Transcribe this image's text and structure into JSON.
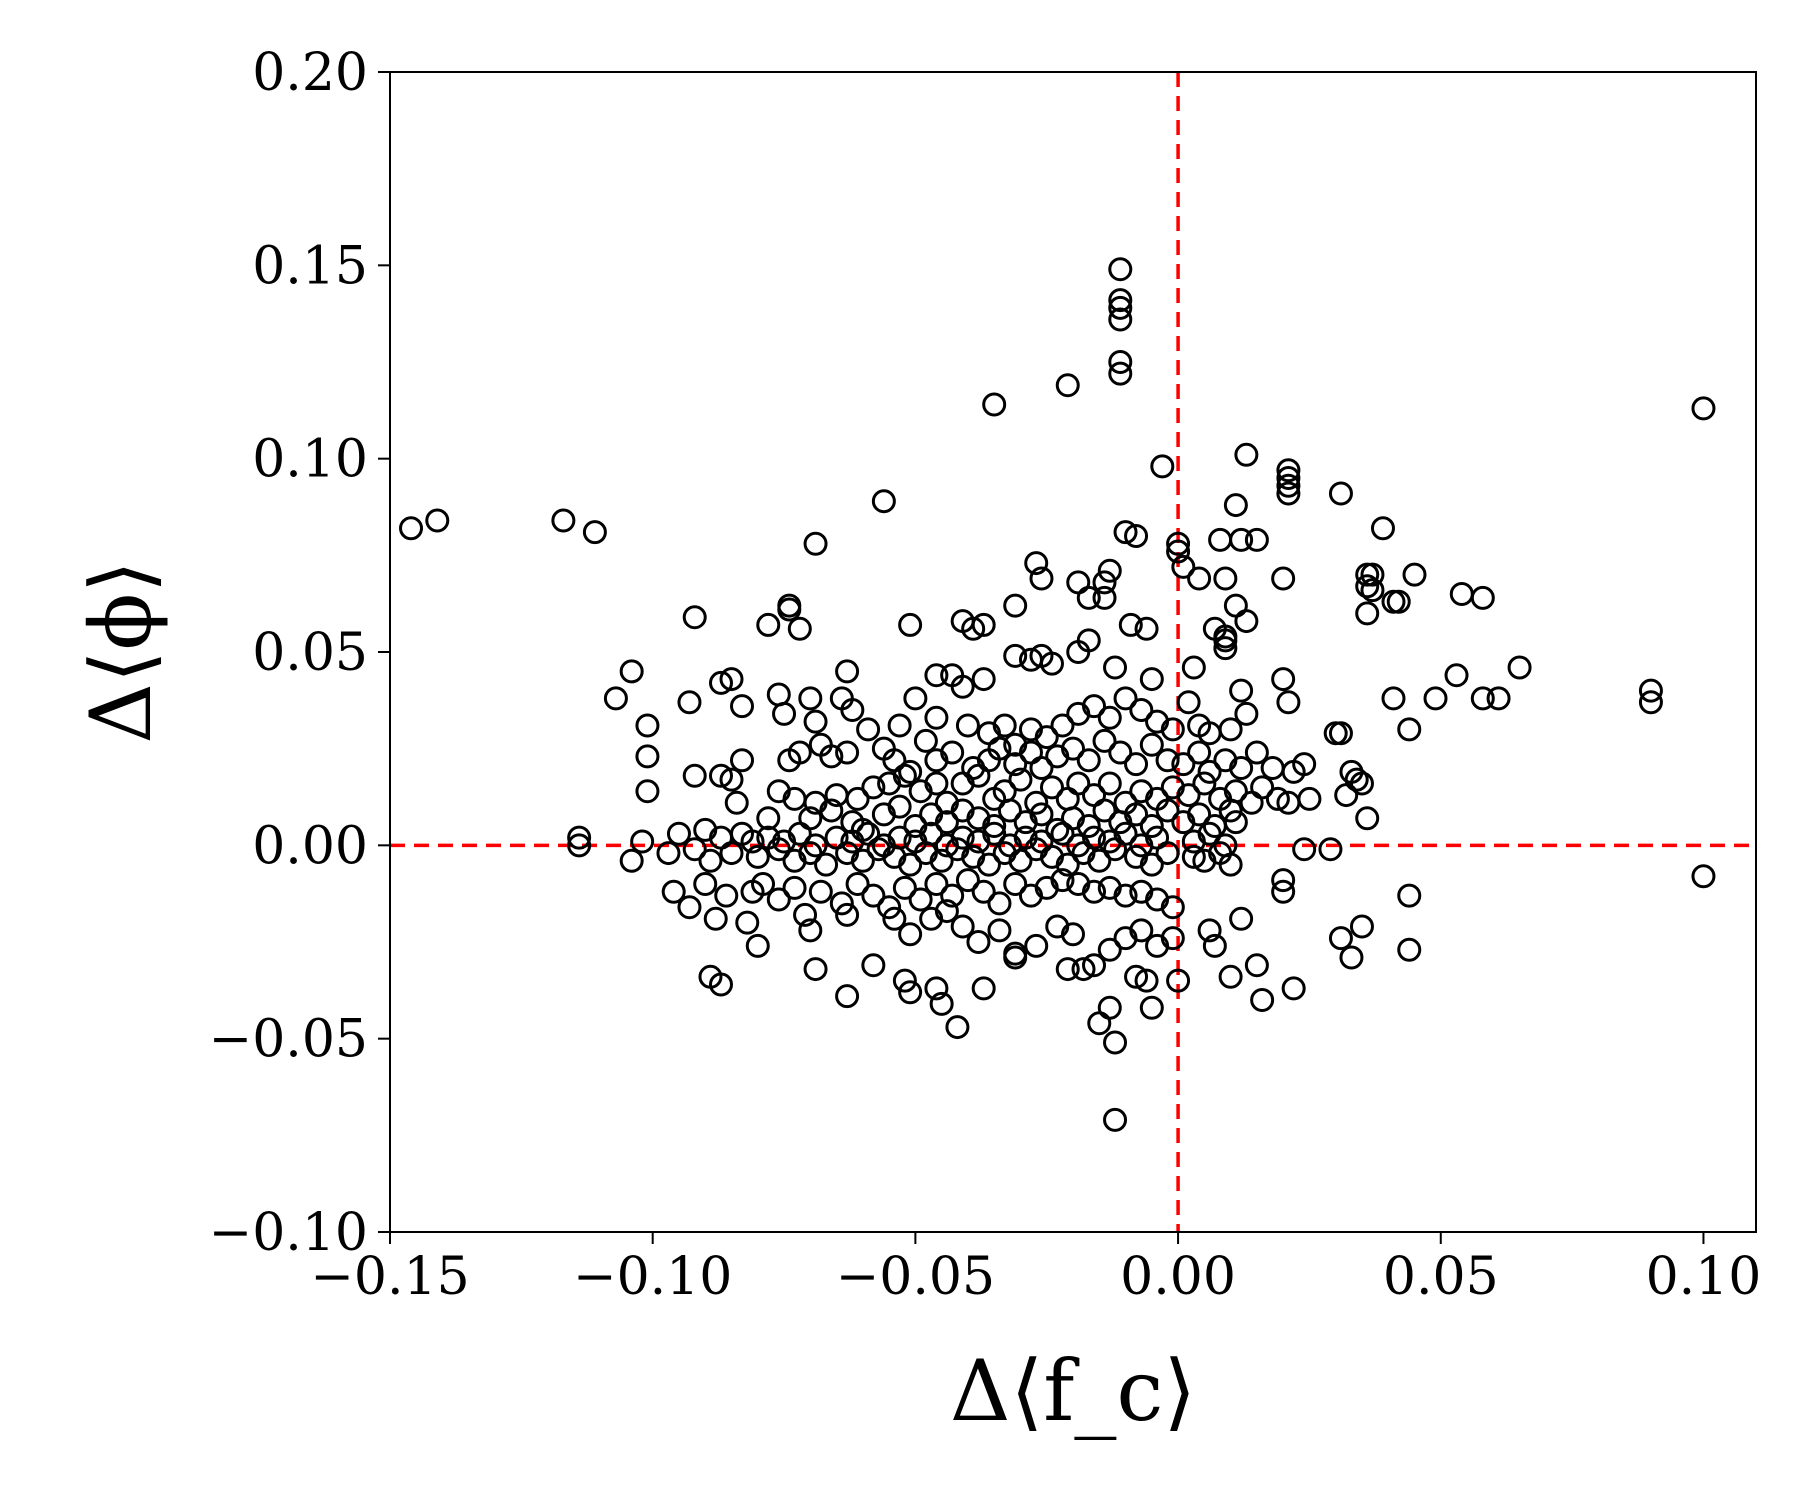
{
  "chart_data": {
    "type": "scatter",
    "xlabel": "Δ⟨f_c⟩",
    "ylabel": "Δ⟨ϕ⟩",
    "xlim": [
      -0.15,
      0.11
    ],
    "ylim": [
      -0.1,
      0.2
    ],
    "x_ticks": [
      -0.15,
      -0.1,
      -0.05,
      0.0,
      0.05,
      0.1
    ],
    "x_tick_labels": [
      "−0.15",
      "−0.10",
      "−0.05",
      "0.00",
      "0.05",
      "0.10"
    ],
    "y_ticks": [
      -0.1,
      -0.05,
      0.0,
      0.05,
      0.1,
      0.15,
      0.2
    ],
    "y_tick_labels": [
      "−0.10",
      "−0.05",
      "0.00",
      "0.05",
      "0.10",
      "0.15",
      "0.20"
    ],
    "reference_lines": {
      "x": 0.0,
      "y": 0.0,
      "color": "#ff0000",
      "style": "dashed"
    },
    "marker": {
      "shape": "open-circle",
      "color": "#000000"
    },
    "grid": false,
    "points": [
      [
        -0.146,
        0.082
      ],
      [
        -0.141,
        0.084
      ],
      [
        -0.117,
        0.084
      ],
      [
        -0.111,
        0.081
      ],
      [
        -0.069,
        0.078
      ],
      [
        -0.056,
        0.089
      ],
      [
        -0.035,
        0.114
      ],
      [
        -0.021,
        0.119
      ],
      [
        -0.011,
        0.149
      ],
      [
        -0.011,
        0.141
      ],
      [
        -0.011,
        0.139
      ],
      [
        -0.011,
        0.136
      ],
      [
        -0.011,
        0.125
      ],
      [
        -0.011,
        0.122
      ],
      [
        0.1,
        0.113
      ],
      [
        0.1,
        -0.008
      ],
      [
        -0.012,
        -0.071
      ],
      [
        -0.003,
        0.098
      ],
      [
        0.013,
        0.101
      ],
      [
        0.021,
        0.097
      ],
      [
        0.021,
        0.095
      ],
      [
        0.021,
        0.093
      ],
      [
        0.021,
        0.091
      ],
      [
        0.031,
        0.091
      ],
      [
        0.011,
        0.088
      ],
      [
        -0.01,
        0.081
      ],
      [
        -0.008,
        0.08
      ],
      [
        0.0,
        0.078
      ],
      [
        0.0,
        0.076
      ],
      [
        0.008,
        0.079
      ],
      [
        0.012,
        0.079
      ],
      [
        0.015,
        0.079
      ],
      [
        0.039,
        0.082
      ],
      [
        -0.027,
        0.073
      ],
      [
        -0.026,
        0.069
      ],
      [
        -0.019,
        0.068
      ],
      [
        -0.013,
        0.071
      ],
      [
        -0.014,
        0.068
      ],
      [
        0.001,
        0.072
      ],
      [
        0.004,
        0.069
      ],
      [
        0.009,
        0.069
      ],
      [
        0.02,
        0.069
      ],
      [
        0.036,
        0.07
      ],
      [
        0.037,
        0.07
      ],
      [
        0.045,
        0.07
      ],
      [
        0.036,
        0.067
      ],
      [
        0.037,
        0.066
      ],
      [
        0.041,
        0.063
      ],
      [
        0.042,
        0.063
      ],
      [
        0.054,
        0.065
      ],
      [
        0.058,
        0.064
      ],
      [
        0.036,
        0.06
      ],
      [
        -0.074,
        0.062
      ],
      [
        -0.074,
        0.061
      ],
      [
        -0.078,
        0.057
      ],
      [
        -0.072,
        0.056
      ],
      [
        -0.092,
        0.059
      ],
      [
        -0.051,
        0.057
      ],
      [
        -0.041,
        0.058
      ],
      [
        -0.039,
        0.056
      ],
      [
        -0.037,
        0.057
      ],
      [
        -0.031,
        0.062
      ],
      [
        -0.017,
        0.064
      ],
      [
        -0.014,
        0.064
      ],
      [
        -0.009,
        0.057
      ],
      [
        -0.006,
        0.056
      ],
      [
        0.007,
        0.056
      ],
      [
        0.009,
        0.053
      ],
      [
        0.011,
        0.062
      ],
      [
        0.013,
        0.058
      ],
      [
        0.009,
        0.054
      ],
      [
        0.009,
        0.051
      ],
      [
        -0.104,
        0.045
      ],
      [
        -0.087,
        0.042
      ],
      [
        -0.085,
        0.043
      ],
      [
        -0.063,
        0.045
      ],
      [
        -0.046,
        0.044
      ],
      [
        -0.043,
        0.044
      ],
      [
        -0.041,
        0.041
      ],
      [
        -0.037,
        0.043
      ],
      [
        -0.031,
        0.049
      ],
      [
        -0.028,
        0.048
      ],
      [
        -0.026,
        0.049
      ],
      [
        -0.024,
        0.047
      ],
      [
        -0.019,
        0.05
      ],
      [
        -0.017,
        0.053
      ],
      [
        -0.012,
        0.046
      ],
      [
        -0.005,
        0.043
      ],
      [
        0.003,
        0.046
      ],
      [
        0.012,
        0.04
      ],
      [
        0.02,
        0.043
      ],
      [
        0.021,
        0.037
      ],
      [
        0.041,
        0.038
      ],
      [
        0.049,
        0.038
      ],
      [
        0.053,
        0.044
      ],
      [
        0.058,
        0.038
      ],
      [
        0.061,
        0.038
      ],
      [
        0.065,
        0.046
      ],
      [
        0.09,
        0.04
      ],
      [
        0.09,
        0.037
      ],
      [
        -0.107,
        0.038
      ],
      [
        -0.093,
        0.037
      ],
      [
        -0.083,
        0.036
      ],
      [
        -0.076,
        0.039
      ],
      [
        -0.07,
        0.038
      ],
      [
        -0.075,
        0.034
      ],
      [
        -0.069,
        0.032
      ],
      [
        -0.064,
        0.038
      ],
      [
        -0.062,
        0.035
      ],
      [
        -0.059,
        0.03
      ],
      [
        -0.053,
        0.031
      ],
      [
        -0.05,
        0.038
      ],
      [
        -0.046,
        0.033
      ],
      [
        -0.04,
        0.031
      ],
      [
        -0.036,
        0.029
      ],
      [
        -0.033,
        0.031
      ],
      [
        -0.031,
        0.026
      ],
      [
        -0.028,
        0.03
      ],
      [
        -0.025,
        0.028
      ],
      [
        -0.022,
        0.031
      ],
      [
        -0.019,
        0.034
      ],
      [
        -0.016,
        0.036
      ],
      [
        -0.013,
        0.033
      ],
      [
        -0.01,
        0.038
      ],
      [
        -0.007,
        0.035
      ],
      [
        -0.004,
        0.032
      ],
      [
        -0.001,
        0.03
      ],
      [
        0.002,
        0.037
      ],
      [
        0.004,
        0.031
      ],
      [
        0.006,
        0.029
      ],
      [
        0.01,
        0.03
      ],
      [
        0.013,
        0.034
      ],
      [
        0.03,
        0.029
      ],
      [
        0.031,
        0.029
      ],
      [
        0.044,
        0.03
      ],
      [
        -0.101,
        0.031
      ],
      [
        -0.101,
        0.023
      ],
      [
        -0.092,
        0.018
      ],
      [
        -0.087,
        0.018
      ],
      [
        -0.083,
        0.022
      ],
      [
        -0.085,
        0.017
      ],
      [
        -0.074,
        0.022
      ],
      [
        -0.072,
        0.024
      ],
      [
        -0.068,
        0.026
      ],
      [
        -0.066,
        0.023
      ],
      [
        -0.063,
        0.024
      ],
      [
        -0.056,
        0.025
      ],
      [
        -0.054,
        0.022
      ],
      [
        -0.051,
        0.019
      ],
      [
        -0.048,
        0.027
      ],
      [
        -0.046,
        0.022
      ],
      [
        -0.043,
        0.024
      ],
      [
        -0.039,
        0.02
      ],
      [
        -0.036,
        0.022
      ],
      [
        -0.034,
        0.025
      ],
      [
        -0.031,
        0.021
      ],
      [
        -0.028,
        0.024
      ],
      [
        -0.026,
        0.02
      ],
      [
        -0.023,
        0.023
      ],
      [
        -0.02,
        0.025
      ],
      [
        -0.017,
        0.022
      ],
      [
        -0.014,
        0.027
      ],
      [
        -0.011,
        0.024
      ],
      [
        -0.008,
        0.021
      ],
      [
        -0.005,
        0.026
      ],
      [
        -0.002,
        0.022
      ],
      [
        0.001,
        0.021
      ],
      [
        0.004,
        0.024
      ],
      [
        0.006,
        0.019
      ],
      [
        0.009,
        0.022
      ],
      [
        0.012,
        0.02
      ],
      [
        0.015,
        0.024
      ],
      [
        0.018,
        0.02
      ],
      [
        0.022,
        0.019
      ],
      [
        0.024,
        0.021
      ],
      [
        0.033,
        0.019
      ],
      [
        0.034,
        0.017
      ],
      [
        -0.101,
        0.014
      ],
      [
        -0.084,
        0.011
      ],
      [
        -0.076,
        0.014
      ],
      [
        -0.073,
        0.012
      ],
      [
        -0.069,
        0.011
      ],
      [
        -0.065,
        0.013
      ],
      [
        -0.061,
        0.012
      ],
      [
        -0.058,
        0.015
      ],
      [
        -0.055,
        0.016
      ],
      [
        -0.052,
        0.018
      ],
      [
        -0.049,
        0.014
      ],
      [
        -0.046,
        0.016
      ],
      [
        -0.044,
        0.011
      ],
      [
        -0.041,
        0.016
      ],
      [
        -0.038,
        0.018
      ],
      [
        -0.035,
        0.012
      ],
      [
        -0.033,
        0.014
      ],
      [
        -0.03,
        0.017
      ],
      [
        -0.027,
        0.011
      ],
      [
        -0.024,
        0.015
      ],
      [
        -0.021,
        0.012
      ],
      [
        -0.019,
        0.016
      ],
      [
        -0.016,
        0.013
      ],
      [
        -0.013,
        0.016
      ],
      [
        -0.01,
        0.011
      ],
      [
        -0.007,
        0.014
      ],
      [
        -0.004,
        0.012
      ],
      [
        -0.001,
        0.015
      ],
      [
        0.002,
        0.013
      ],
      [
        0.005,
        0.016
      ],
      [
        0.008,
        0.012
      ],
      [
        0.011,
        0.014
      ],
      [
        0.014,
        0.011
      ],
      [
        0.016,
        0.015
      ],
      [
        0.019,
        0.012
      ],
      [
        0.021,
        0.011
      ],
      [
        0.025,
        0.012
      ],
      [
        0.032,
        0.013
      ],
      [
        0.035,
        0.016
      ],
      [
        -0.078,
        0.007
      ],
      [
        -0.07,
        0.007
      ],
      [
        -0.066,
        0.009
      ],
      [
        -0.062,
        0.006
      ],
      [
        -0.06,
        0.004
      ],
      [
        -0.056,
        0.008
      ],
      [
        -0.053,
        0.01
      ],
      [
        -0.05,
        0.005
      ],
      [
        -0.047,
        0.008
      ],
      [
        -0.044,
        0.006
      ],
      [
        -0.041,
        0.009
      ],
      [
        -0.038,
        0.007
      ],
      [
        -0.035,
        0.005
      ],
      [
        -0.032,
        0.009
      ],
      [
        -0.029,
        0.006
      ],
      [
        -0.026,
        0.008
      ],
      [
        -0.023,
        0.004
      ],
      [
        -0.02,
        0.007
      ],
      [
        -0.017,
        0.005
      ],
      [
        -0.014,
        0.009
      ],
      [
        -0.011,
        0.006
      ],
      [
        -0.008,
        0.008
      ],
      [
        -0.005,
        0.005
      ],
      [
        -0.002,
        0.009
      ],
      [
        0.001,
        0.006
      ],
      [
        0.004,
        0.008
      ],
      [
        0.007,
        0.005
      ],
      [
        0.01,
        0.009
      ],
      [
        0.011,
        0.006
      ],
      [
        0.036,
        0.007
      ],
      [
        -0.114,
        0.002
      ],
      [
        -0.114,
        0.0
      ],
      [
        -0.102,
        0.001
      ],
      [
        -0.095,
        0.003
      ],
      [
        -0.09,
        0.004
      ],
      [
        -0.087,
        0.002
      ],
      [
        -0.083,
        0.003
      ],
      [
        -0.081,
        0.001
      ],
      [
        -0.078,
        0.002
      ],
      [
        -0.075,
        0.001
      ],
      [
        -0.072,
        0.003
      ],
      [
        -0.069,
        0.0
      ],
      [
        -0.065,
        0.002
      ],
      [
        -0.062,
        0.001
      ],
      [
        -0.059,
        0.003
      ],
      [
        -0.056,
        0.0
      ],
      [
        -0.053,
        0.002
      ],
      [
        -0.05,
        0.001
      ],
      [
        -0.047,
        0.003
      ],
      [
        -0.044,
        0.0
      ],
      [
        -0.041,
        0.002
      ],
      [
        -0.038,
        0.001
      ],
      [
        -0.035,
        0.003
      ],
      [
        -0.032,
        0.0
      ],
      [
        -0.029,
        0.002
      ],
      [
        -0.026,
        0.001
      ],
      [
        -0.022,
        0.003
      ],
      [
        -0.019,
        0.0
      ],
      [
        -0.016,
        0.002
      ],
      [
        -0.013,
        0.001
      ],
      [
        -0.01,
        0.003
      ],
      [
        -0.007,
        0.0
      ],
      [
        -0.004,
        0.002
      ],
      [
        0.003,
        0.001
      ],
      [
        0.006,
        0.003
      ],
      [
        0.009,
        0.0
      ],
      [
        -0.104,
        -0.004
      ],
      [
        -0.097,
        -0.002
      ],
      [
        -0.092,
        -0.001
      ],
      [
        -0.089,
        -0.004
      ],
      [
        -0.085,
        -0.002
      ],
      [
        -0.08,
        -0.003
      ],
      [
        -0.076,
        -0.001
      ],
      [
        -0.073,
        -0.004
      ],
      [
        -0.07,
        -0.002
      ],
      [
        -0.067,
        -0.005
      ],
      [
        -0.063,
        -0.002
      ],
      [
        -0.06,
        -0.004
      ],
      [
        -0.057,
        -0.001
      ],
      [
        -0.054,
        -0.003
      ],
      [
        -0.051,
        -0.005
      ],
      [
        -0.048,
        -0.002
      ],
      [
        -0.045,
        -0.004
      ],
      [
        -0.042,
        -0.001
      ],
      [
        -0.039,
        -0.003
      ],
      [
        -0.036,
        -0.005
      ],
      [
        -0.033,
        -0.002
      ],
      [
        -0.03,
        -0.004
      ],
      [
        -0.027,
        -0.001
      ],
      [
        -0.024,
        -0.003
      ],
      [
        -0.021,
        -0.005
      ],
      [
        -0.018,
        -0.002
      ],
      [
        -0.015,
        -0.004
      ],
      [
        -0.012,
        -0.001
      ],
      [
        -0.008,
        -0.003
      ],
      [
        -0.005,
        -0.005
      ],
      [
        -0.002,
        -0.002
      ],
      [
        0.003,
        -0.003
      ],
      [
        0.005,
        -0.004
      ],
      [
        0.008,
        -0.002
      ],
      [
        0.01,
        -0.005
      ],
      [
        0.024,
        -0.001
      ],
      [
        0.029,
        -0.001
      ],
      [
        -0.096,
        -0.012
      ],
      [
        -0.093,
        -0.016
      ],
      [
        -0.09,
        -0.01
      ],
      [
        -0.086,
        -0.013
      ],
      [
        -0.081,
        -0.012
      ],
      [
        -0.079,
        -0.01
      ],
      [
        -0.076,
        -0.014
      ],
      [
        -0.073,
        -0.011
      ],
      [
        -0.071,
        -0.018
      ],
      [
        -0.068,
        -0.012
      ],
      [
        -0.064,
        -0.015
      ],
      [
        -0.061,
        -0.01
      ],
      [
        -0.058,
        -0.013
      ],
      [
        -0.055,
        -0.016
      ],
      [
        -0.052,
        -0.011
      ],
      [
        -0.049,
        -0.014
      ],
      [
        -0.046,
        -0.01
      ],
      [
        -0.043,
        -0.013
      ],
      [
        -0.04,
        -0.009
      ],
      [
        -0.037,
        -0.012
      ],
      [
        -0.034,
        -0.015
      ],
      [
        -0.031,
        -0.01
      ],
      [
        -0.028,
        -0.013
      ],
      [
        -0.025,
        -0.011
      ],
      [
        -0.022,
        -0.009
      ],
      [
        -0.019,
        -0.01
      ],
      [
        -0.016,
        -0.012
      ],
      [
        -0.013,
        -0.011
      ],
      [
        -0.01,
        -0.013
      ],
      [
        -0.007,
        -0.012
      ],
      [
        -0.004,
        -0.014
      ],
      [
        -0.001,
        -0.016
      ],
      [
        0.02,
        -0.009
      ],
      [
        0.02,
        -0.012
      ],
      [
        0.044,
        -0.013
      ],
      [
        -0.088,
        -0.019
      ],
      [
        -0.082,
        -0.02
      ],
      [
        -0.08,
        -0.026
      ],
      [
        -0.07,
        -0.022
      ],
      [
        -0.069,
        -0.032
      ],
      [
        -0.063,
        -0.018
      ],
      [
        -0.058,
        -0.031
      ],
      [
        -0.054,
        -0.019
      ],
      [
        -0.051,
        -0.023
      ],
      [
        -0.047,
        -0.019
      ],
      [
        -0.044,
        -0.017
      ],
      [
        -0.041,
        -0.021
      ],
      [
        -0.038,
        -0.025
      ],
      [
        -0.034,
        -0.022
      ],
      [
        -0.031,
        -0.028
      ],
      [
        -0.027,
        -0.026
      ],
      [
        -0.023,
        -0.021
      ],
      [
        -0.02,
        -0.023
      ],
      [
        -0.016,
        -0.031
      ],
      [
        -0.013,
        -0.027
      ],
      [
        -0.01,
        -0.024
      ],
      [
        -0.007,
        -0.022
      ],
      [
        -0.004,
        -0.026
      ],
      [
        -0.001,
        -0.024
      ],
      [
        0.006,
        -0.022
      ],
      [
        0.007,
        -0.026
      ],
      [
        0.012,
        -0.019
      ],
      [
        0.015,
        -0.031
      ],
      [
        0.031,
        -0.024
      ],
      [
        0.033,
        -0.029
      ],
      [
        0.035,
        -0.021
      ],
      [
        0.044,
        -0.027
      ],
      [
        -0.089,
        -0.034
      ],
      [
        -0.087,
        -0.036
      ],
      [
        -0.063,
        -0.039
      ],
      [
        -0.052,
        -0.035
      ],
      [
        -0.051,
        -0.038
      ],
      [
        -0.046,
        -0.037
      ],
      [
        -0.045,
        -0.041
      ],
      [
        -0.042,
        -0.047
      ],
      [
        -0.037,
        -0.037
      ],
      [
        -0.031,
        -0.029
      ],
      [
        -0.021,
        -0.032
      ],
      [
        -0.018,
        -0.032
      ],
      [
        -0.015,
        -0.046
      ],
      [
        -0.013,
        -0.042
      ],
      [
        -0.012,
        -0.051
      ],
      [
        -0.008,
        -0.034
      ],
      [
        -0.006,
        -0.035
      ],
      [
        -0.005,
        -0.042
      ],
      [
        0.0,
        -0.035
      ],
      [
        0.01,
        -0.034
      ],
      [
        0.016,
        -0.04
      ],
      [
        0.022,
        -0.037
      ]
    ]
  }
}
